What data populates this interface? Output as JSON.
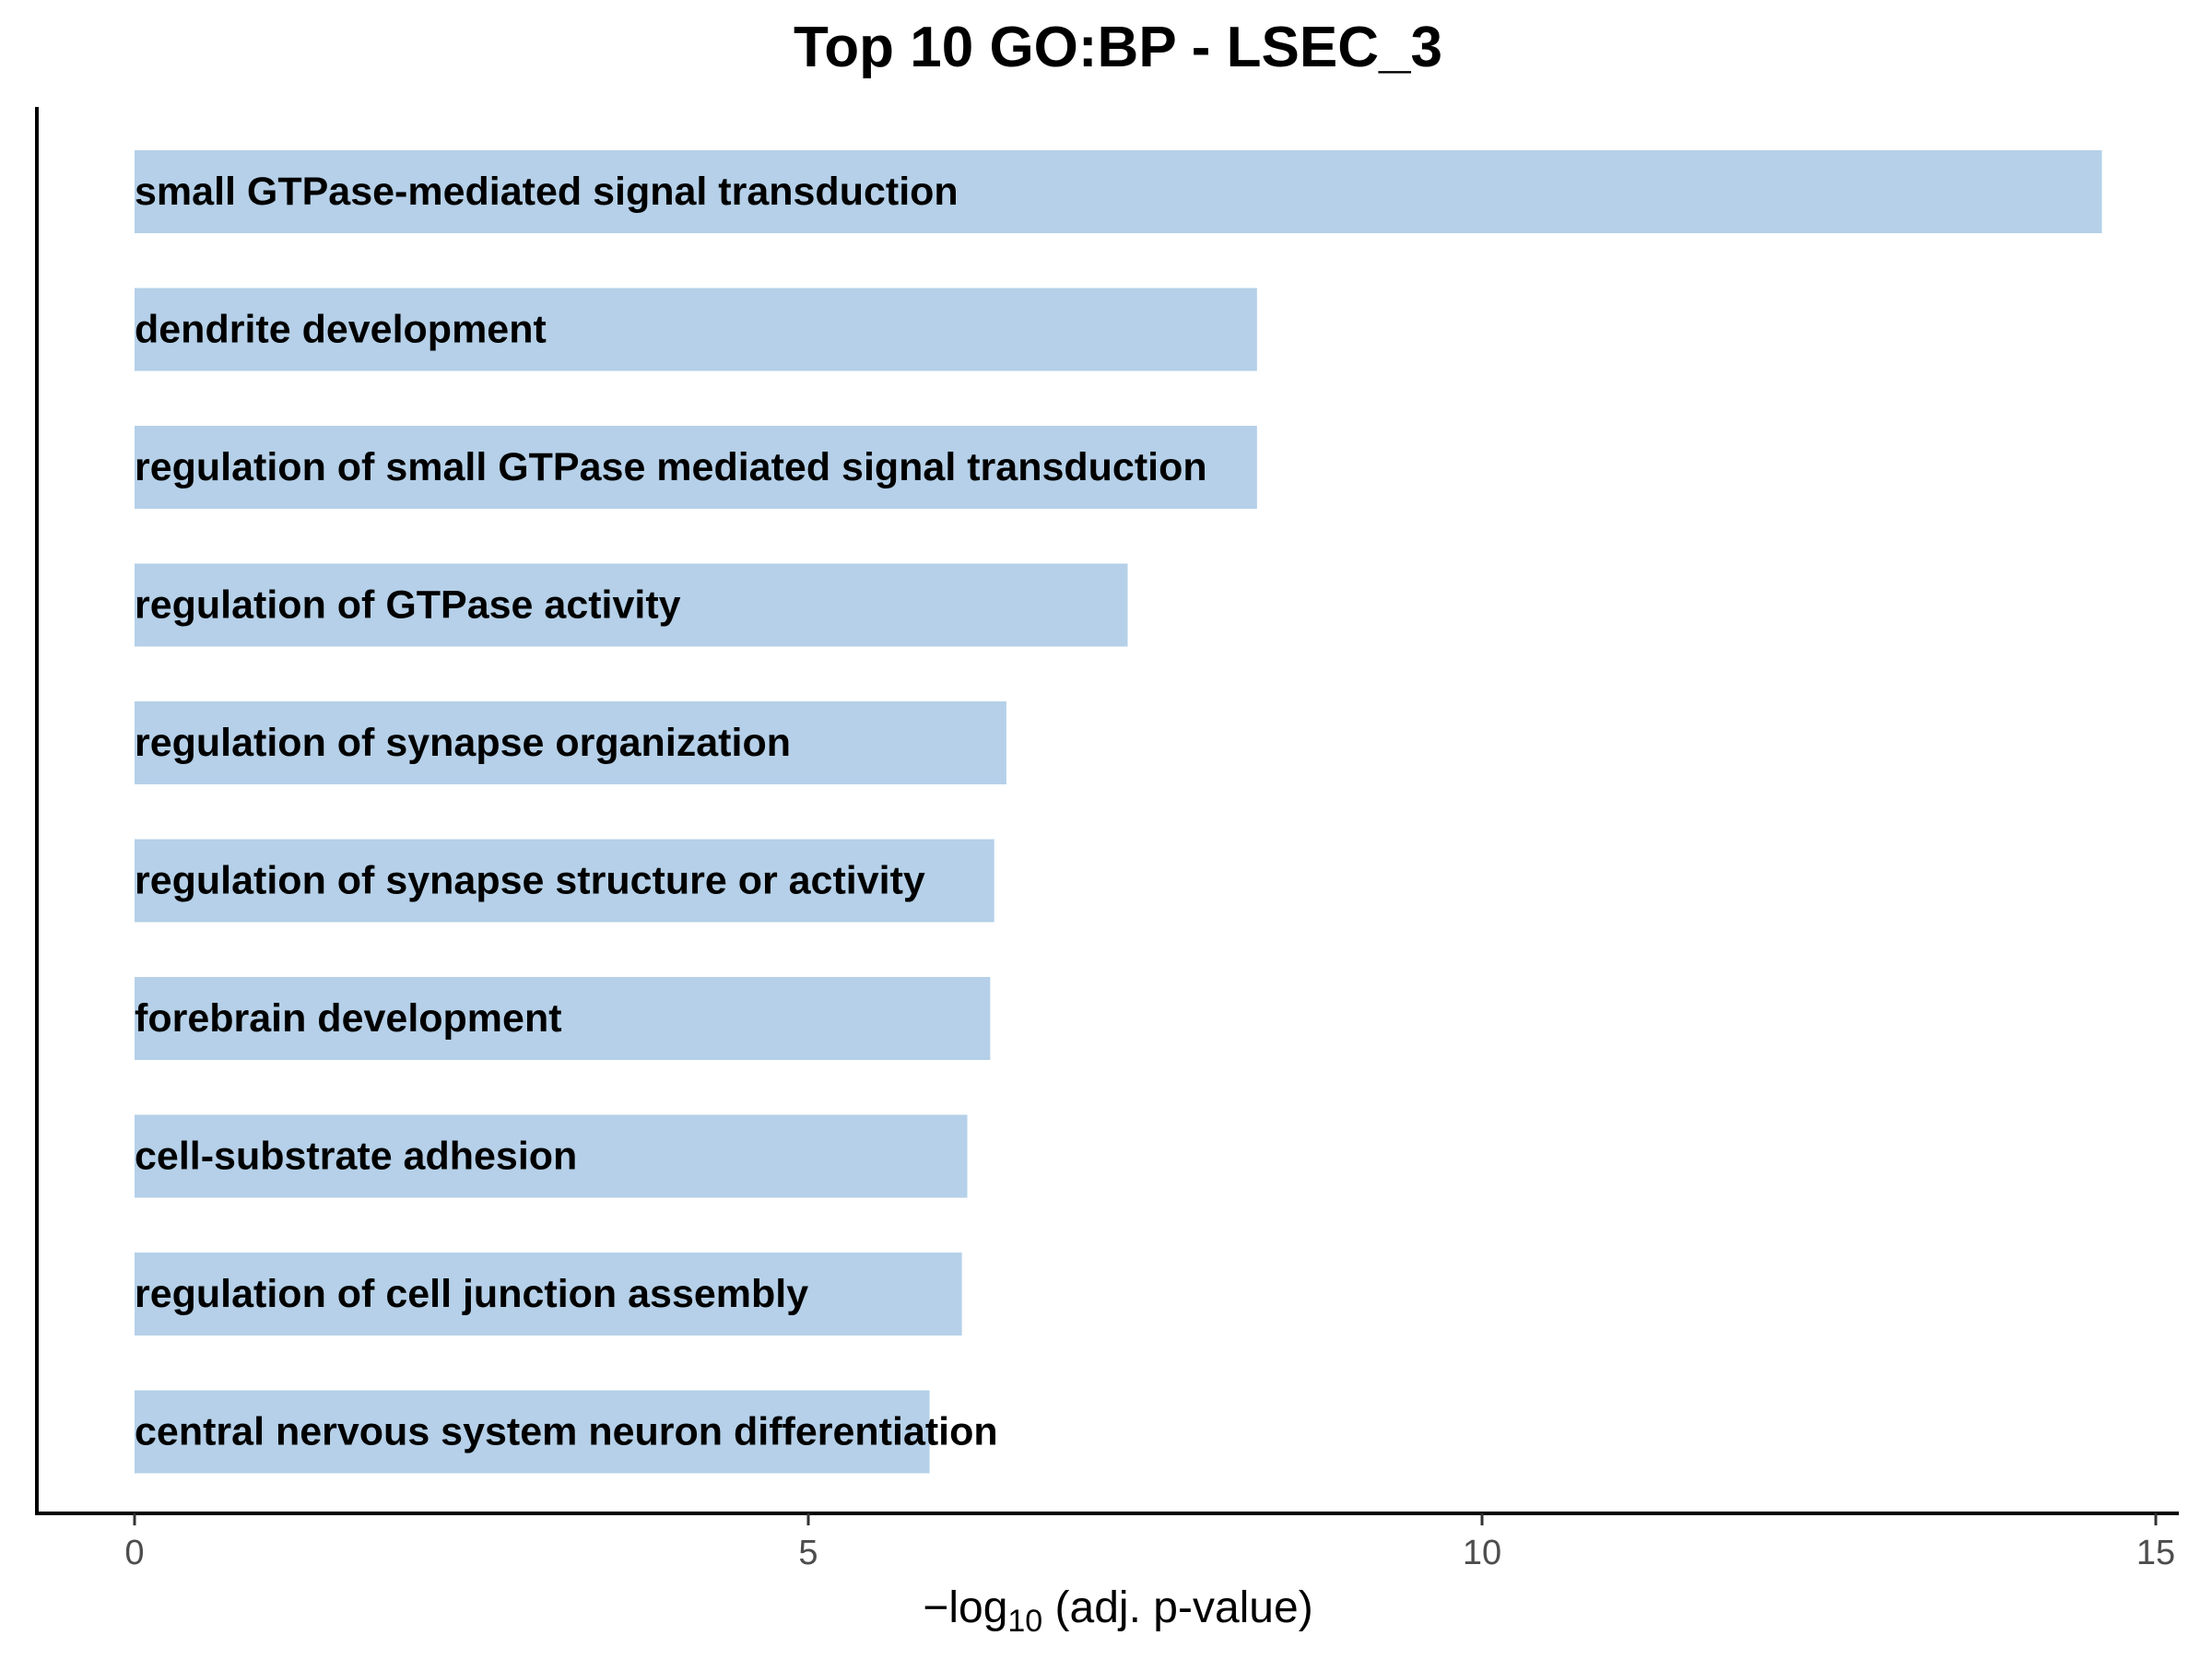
{
  "chart_data": {
    "type": "bar",
    "orientation": "horizontal",
    "title": "Top 10 GO:BP - LSEC_3",
    "xlabel": {
      "prefix": "−log",
      "subscript": "10",
      "suffix": " (adj. p-value)"
    },
    "ylabel": "",
    "xlim": [
      0,
      15
    ],
    "xticks": [
      0,
      5,
      10,
      15
    ],
    "grid": false,
    "bar_color": "#b5d0e8",
    "categories": [
      "small GTPase-mediated signal transduction",
      "dendrite development",
      "regulation of small GTPase mediated signal transduction",
      "regulation of GTPase activity",
      "regulation of synapse organization",
      "regulation of synapse structure or activity",
      "forebrain development",
      "cell-substrate adhesion",
      "regulation of cell junction assembly",
      "central nervous system neuron differentiation"
    ],
    "values": [
      14.6,
      8.33,
      8.33,
      7.37,
      6.47,
      6.38,
      6.35,
      6.18,
      6.14,
      5.9
    ]
  }
}
